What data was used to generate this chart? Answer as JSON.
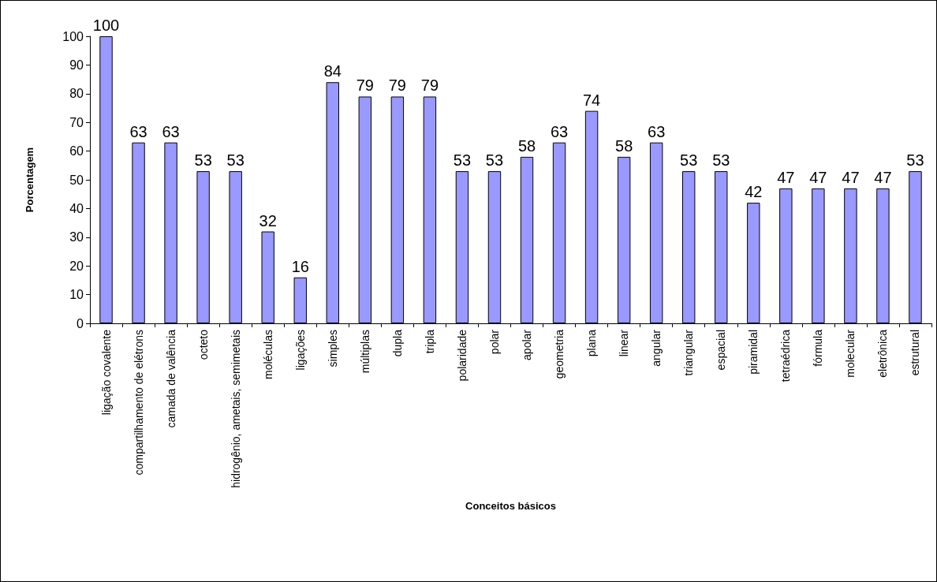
{
  "chart_data": {
    "type": "bar",
    "xlabel": "Conceitos básicos",
    "ylabel": "Porcentagem",
    "categories": [
      "ligação covalente",
      "compartilhamento de elétrons",
      "camada de valência",
      "octeto",
      "hidrogênio, ametais, semimetais",
      "moléculas",
      "ligações",
      "simples",
      "múltiplas",
      "dupla",
      "tripla",
      "polaridade",
      "polar",
      "apolar",
      "geometria",
      "plana",
      "linear",
      "angular",
      "triangular",
      "espacial",
      "piramidal",
      "tetraédrica",
      "fórmula",
      "molecular",
      "eletrônica",
      "estrutural"
    ],
    "values": [
      100,
      63,
      63,
      53,
      53,
      32,
      16,
      84,
      79,
      79,
      79,
      53,
      53,
      58,
      63,
      74,
      58,
      63,
      53,
      53,
      42,
      47,
      47,
      47,
      47,
      53
    ],
    "color": "#9999ff",
    "ylim": [
      0,
      100
    ],
    "yticks": [
      0,
      10,
      20,
      30,
      40,
      50,
      60,
      70,
      80,
      90,
      100
    ],
    "grid": false,
    "data_labels": true
  }
}
